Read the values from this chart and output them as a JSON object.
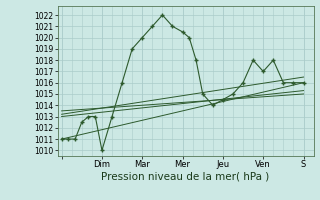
{
  "background_color": "#cce8e4",
  "grid_color": "#aaccca",
  "line_color": "#2d5a2d",
  "xlabel": "Pression niveau de la mer( hPa )",
  "xlabel_fontsize": 7.5,
  "ylim": [
    1009.5,
    1022.8
  ],
  "yticks": [
    1010,
    1011,
    1012,
    1013,
    1014,
    1015,
    1016,
    1017,
    1018,
    1019,
    1020,
    1021,
    1022
  ],
  "ytick_fontsize": 5.5,
  "xtick_labels": [
    "",
    "Dim",
    "Mar",
    "Mer",
    "Jeu",
    "Ven",
    "S"
  ],
  "x_positions": [
    0,
    2,
    4,
    6,
    8,
    10,
    12
  ],
  "xtick_fontsize": 6,
  "series1": {
    "x": [
      0,
      0.33,
      0.67,
      1.0,
      1.33,
      1.67,
      2.0,
      2.5,
      3.0,
      3.5,
      4.0,
      4.5,
      5.0,
      5.5,
      6.0,
      6.33,
      6.67,
      7.0,
      7.5,
      8.0,
      8.5,
      9.0,
      9.5,
      10.0,
      10.5,
      11.0,
      11.5,
      12.0
    ],
    "y": [
      1011,
      1011,
      1011,
      1012.5,
      1013,
      1013,
      1010,
      1013,
      1016,
      1019,
      1020,
      1021,
      1022,
      1021,
      1020.5,
      1020,
      1018,
      1015,
      1014,
      1014.5,
      1015,
      1016,
      1018,
      1017,
      1018,
      1016,
      1016,
      1016
    ]
  },
  "trend_lines": [
    {
      "x": [
        0,
        12
      ],
      "y": [
        1011.0,
        1016.0
      ]
    },
    {
      "x": [
        0,
        12
      ],
      "y": [
        1013.2,
        1016.5
      ]
    },
    {
      "x": [
        0,
        12
      ],
      "y": [
        1013.0,
        1015.3
      ]
    },
    {
      "x": [
        0,
        12
      ],
      "y": [
        1013.5,
        1015.0
      ]
    }
  ],
  "xlim": [
    -0.2,
    12.5
  ]
}
